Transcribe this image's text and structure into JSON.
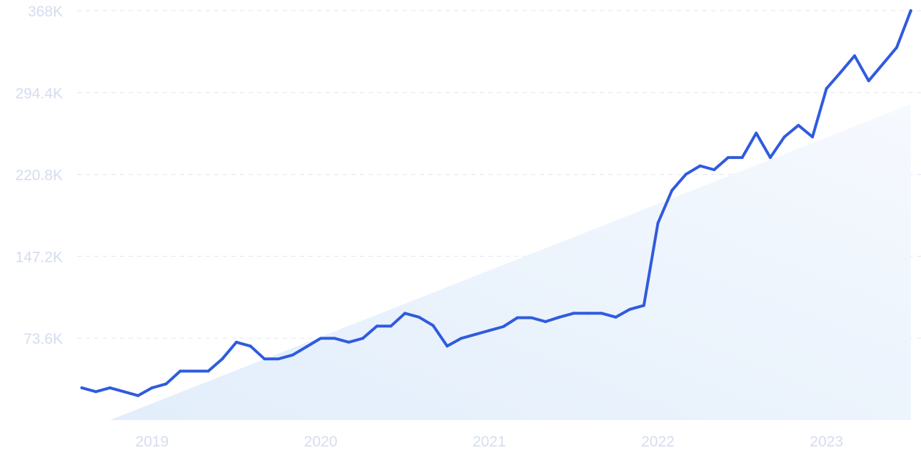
{
  "chart_data": {
    "type": "line",
    "title": "",
    "xlabel": "",
    "ylabel": "",
    "ylim": [
      0,
      368000
    ],
    "y_ticks": [
      {
        "value": 73600,
        "label": "73.6K"
      },
      {
        "value": 147200,
        "label": "147.2K"
      },
      {
        "value": 220800,
        "label": "220.8K"
      },
      {
        "value": 294400,
        "label": "294.4K"
      },
      {
        "value": 368000,
        "label": "368K"
      }
    ],
    "x_ticks": [
      {
        "value": "2019-01",
        "label": "2019"
      },
      {
        "value": "2020-01",
        "label": "2020"
      },
      {
        "value": "2021-01",
        "label": "2021"
      },
      {
        "value": "2022-01",
        "label": "2022"
      },
      {
        "value": "2023-01",
        "label": "2023"
      }
    ],
    "grid": "horizontal dashed",
    "trend": {
      "start": [
        "2018-10",
        0
      ],
      "end": [
        "2023-07",
        284000
      ]
    },
    "series": [
      {
        "color": "#2f5bde",
        "points": [
          [
            "2018-08",
            29000
          ],
          [
            "2018-09",
            25500
          ],
          [
            "2018-10",
            29000
          ],
          [
            "2018-11",
            25500
          ],
          [
            "2018-12",
            22000
          ],
          [
            "2019-01",
            29000
          ],
          [
            "2019-02",
            32500
          ],
          [
            "2019-03",
            44000
          ],
          [
            "2019-04",
            44000
          ],
          [
            "2019-05",
            44000
          ],
          [
            "2019-06",
            55000
          ],
          [
            "2019-07",
            70000
          ],
          [
            "2019-08",
            66500
          ],
          [
            "2019-09",
            55000
          ],
          [
            "2019-10",
            55000
          ],
          [
            "2019-11",
            58500
          ],
          [
            "2019-12",
            66000
          ],
          [
            "2020-01",
            73500
          ],
          [
            "2020-02",
            73500
          ],
          [
            "2020-03",
            70000
          ],
          [
            "2020-04",
            73500
          ],
          [
            "2020-05",
            84500
          ],
          [
            "2020-06",
            84500
          ],
          [
            "2020-07",
            96000
          ],
          [
            "2020-08",
            92500
          ],
          [
            "2020-09",
            85000
          ],
          [
            "2020-10",
            66500
          ],
          [
            "2020-11",
            73500
          ],
          [
            "2020-12",
            77000
          ],
          [
            "2021-01",
            80500
          ],
          [
            "2021-02",
            84000
          ],
          [
            "2021-03",
            92000
          ],
          [
            "2021-04",
            92000
          ],
          [
            "2021-05",
            88500
          ],
          [
            "2021-06",
            92500
          ],
          [
            "2021-07",
            96000
          ],
          [
            "2021-08",
            96000
          ],
          [
            "2021-09",
            96000
          ],
          [
            "2021-10",
            92500
          ],
          [
            "2021-11",
            99500
          ],
          [
            "2021-12",
            103000
          ],
          [
            "2022-01",
            177000
          ],
          [
            "2022-02",
            206500
          ],
          [
            "2022-03",
            221000
          ],
          [
            "2022-04",
            228500
          ],
          [
            "2022-05",
            225000
          ],
          [
            "2022-06",
            236000
          ],
          [
            "2022-07",
            236000
          ],
          [
            "2022-08",
            258000
          ],
          [
            "2022-09",
            236000
          ],
          [
            "2022-10",
            254500
          ],
          [
            "2022-11",
            265000
          ],
          [
            "2022-12",
            254500
          ],
          [
            "2023-01",
            298000
          ],
          [
            "2023-02",
            312500
          ],
          [
            "2023-03",
            327500
          ],
          [
            "2023-04",
            305000
          ],
          [
            "2023-05",
            320000
          ],
          [
            "2023-06",
            335000
          ],
          [
            "2023-07",
            368000
          ]
        ]
      }
    ]
  }
}
